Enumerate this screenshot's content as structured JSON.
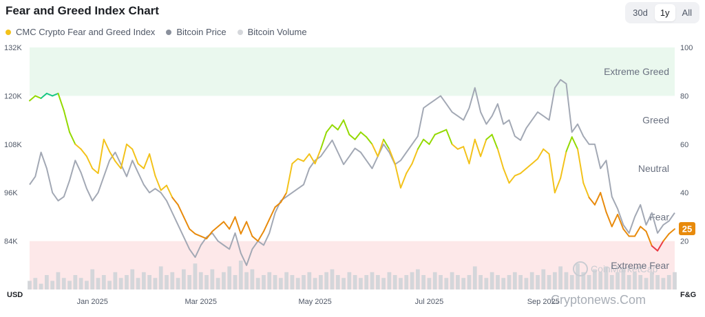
{
  "title": "Fear and Greed Index Chart",
  "range_buttons": [
    {
      "label": "30d",
      "active": false
    },
    {
      "label": "1y",
      "active": true
    },
    {
      "label": "All",
      "active": false
    }
  ],
  "legend": [
    {
      "label": "CMC Crypto Fear and Greed Index",
      "color": "#f3c21a"
    },
    {
      "label": "Bitcoin Price",
      "color": "#8a909c"
    },
    {
      "label": "Bitcoin Volume",
      "color": "#d5d7db"
    }
  ],
  "zones": [
    {
      "label": "Extreme Greed",
      "range": [
        80,
        100
      ],
      "fill": "#eaf8ee"
    },
    {
      "label": "Greed",
      "range": [
        60,
        80
      ]
    },
    {
      "label": "Neutral",
      "range": [
        40,
        60
      ]
    },
    {
      "label": "Fear",
      "range": [
        20,
        40
      ]
    },
    {
      "label": "Extreme Fear",
      "range": [
        0,
        20
      ],
      "fill": "#fde8e9"
    }
  ],
  "watermarks": [
    "CoinMarketCap",
    "Cryptonews.Com"
  ],
  "chart_data": {
    "type": "line",
    "left_axis": {
      "unit": "USD",
      "ticks": [
        "132K",
        "120K",
        "108K",
        "96K",
        "84K"
      ],
      "range": [
        72000,
        132000
      ]
    },
    "right_axis": {
      "unit": "F&G",
      "ticks": [
        "100",
        "80",
        "60",
        "40",
        "20"
      ],
      "range": [
        0,
        100
      ]
    },
    "x_ticks": [
      "Jan 2025",
      "Mar 2025",
      "May 2025",
      "Jul 2025",
      "Sep 2025"
    ],
    "x_tick_index": [
      11,
      30,
      50,
      70,
      90
    ],
    "current_value_label": "25",
    "series": [
      {
        "name": "CMC Crypto Fear and Greed Index",
        "axis": "right",
        "values": [
          78,
          80,
          79,
          81,
          80,
          81,
          74,
          65,
          60,
          58,
          55,
          50,
          48,
          62,
          57,
          53,
          50,
          60,
          58,
          52,
          50,
          56,
          47,
          41,
          43,
          38,
          35,
          30,
          25,
          23,
          22,
          21,
          24,
          26,
          28,
          25,
          30,
          23,
          28,
          22,
          20,
          24,
          29,
          34,
          36,
          40,
          52,
          54,
          53,
          56,
          52,
          58,
          65,
          68,
          66,
          70,
          64,
          62,
          65,
          63,
          60,
          55,
          62,
          58,
          52,
          42,
          48,
          52,
          58,
          62,
          60,
          64,
          65,
          66,
          60,
          58,
          59,
          52,
          62,
          55,
          62,
          64,
          58,
          50,
          44,
          47,
          48,
          50,
          52,
          54,
          58,
          56,
          40,
          46,
          57,
          63,
          58,
          44,
          38,
          35,
          40,
          32,
          26,
          31,
          25,
          22,
          22,
          26,
          24,
          18,
          16,
          20,
          23,
          25
        ],
        "color": "#f3c21a"
      },
      {
        "name": "Bitcoin Price",
        "axis": "left",
        "values": [
          98000,
          100000,
          106000,
          102000,
          96000,
          94000,
          95000,
          99000,
          104000,
          101000,
          97000,
          94000,
          96000,
          100000,
          104000,
          106000,
          103000,
          100000,
          104000,
          101000,
          98000,
          96000,
          97000,
          96000,
          94000,
          91000,
          88000,
          85000,
          82000,
          80000,
          83000,
          85000,
          86000,
          84000,
          83000,
          82000,
          86000,
          81000,
          78000,
          82000,
          84000,
          83000,
          86000,
          91000,
          94000,
          95000,
          96000,
          97000,
          98000,
          102000,
          104000,
          105000,
          107000,
          109000,
          106000,
          103000,
          105000,
          107000,
          106000,
          104000,
          102000,
          105000,
          108000,
          106000,
          103000,
          104000,
          106000,
          108000,
          110000,
          117000,
          118000,
          119000,
          120000,
          118000,
          116000,
          115000,
          114000,
          117000,
          122000,
          116000,
          113000,
          115000,
          118000,
          113000,
          114000,
          110000,
          109000,
          112000,
          114000,
          116000,
          115000,
          114000,
          122000,
          124000,
          123000,
          111000,
          113000,
          110000,
          108000,
          108000,
          102000,
          104000,
          95000,
          92000,
          88000,
          86000,
          90000,
          93000,
          88000,
          91000,
          86000,
          88000,
          89000,
          91000
        ],
        "color": "#a2a8b4"
      },
      {
        "name": "Bitcoin Volume",
        "axis": "bars",
        "values": [
          3,
          4,
          2,
          5,
          3,
          6,
          4,
          3,
          5,
          4,
          3,
          7,
          4,
          5,
          3,
          6,
          4,
          5,
          7,
          4,
          6,
          5,
          4,
          8,
          5,
          6,
          4,
          7,
          5,
          9,
          6,
          5,
          7,
          4,
          6,
          8,
          5,
          10,
          6,
          7,
          4,
          5,
          6,
          5,
          4,
          6,
          5,
          4,
          5,
          6,
          4,
          5,
          6,
          7,
          5,
          4,
          6,
          5,
          4,
          5,
          6,
          5,
          4,
          6,
          5,
          4,
          5,
          6,
          7,
          5,
          4,
          6,
          5,
          4,
          6,
          5,
          4,
          5,
          8,
          5,
          4,
          6,
          5,
          4,
          5,
          6,
          5,
          4,
          6,
          5,
          7,
          5,
          6,
          8,
          6,
          5,
          9,
          6,
          5,
          7,
          6,
          8,
          5,
          6,
          7,
          5,
          6,
          5,
          4,
          6,
          5,
          4,
          5,
          6
        ],
        "color": "#d4d6da"
      }
    ]
  }
}
